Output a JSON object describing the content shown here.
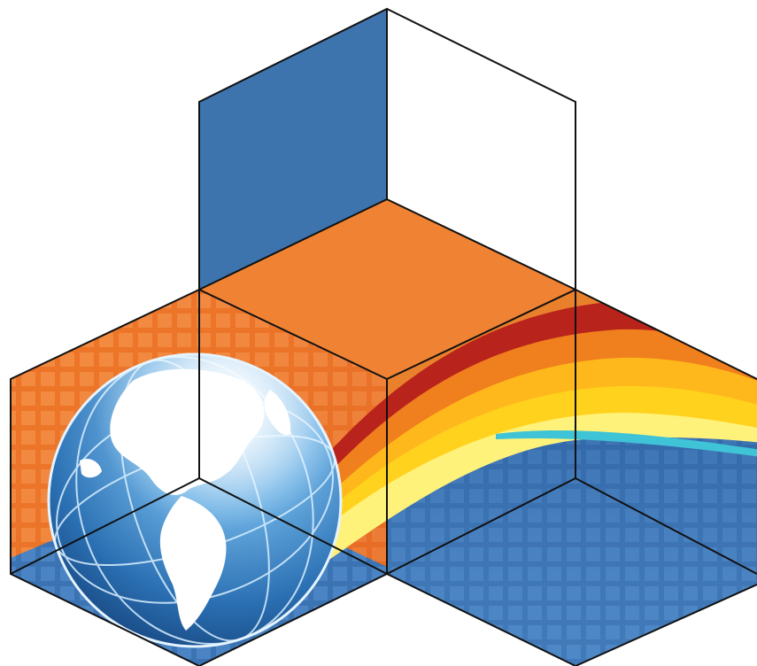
{
  "illustration": {
    "subject": "isometric-cube-panels-with-globe-and-flow-bands",
    "colors": {
      "blue_panel": "#3e74ae",
      "orange_panel": "#f08333",
      "orange_mosaic_light": "#f4934a",
      "orange_mosaic_dark": "#e5641c",
      "blue_mosaic": "#3f78b8",
      "blue_mosaic_light": "#5a92cf",
      "blue_mosaic_dark": "#2d5a9a",
      "flow_red": "#b8231b",
      "flow_orange": "#f07f1d",
      "flow_yellow": "#ffd21e",
      "flow_pale": "#fff27a",
      "flow_cyan": "#3fc3d6",
      "globe_ocean": "#2a73b6",
      "globe_land": "#ffffff",
      "outline": "#111111"
    },
    "icons": [
      "globe-icon"
    ]
  }
}
